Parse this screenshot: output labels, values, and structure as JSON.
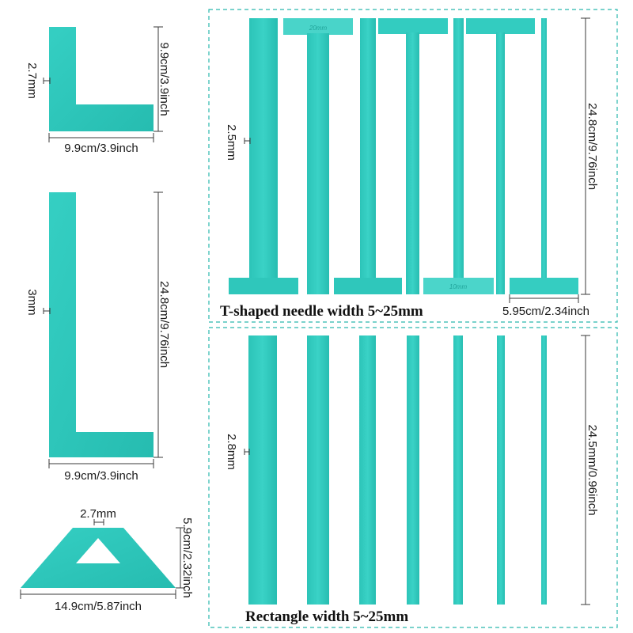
{
  "colors": {
    "acrylic": "#30cbbf",
    "acrylic_light": "#5fdcd2",
    "acrylic_dark": "#22b3a8",
    "box_border": "#2bb8ad"
  },
  "small_l": {
    "height_label": "9.9cm/3.9inch",
    "width_label": "9.9cm/3.9inch",
    "thickness_label": "2.7mm"
  },
  "large_l": {
    "height_label": "24.8cm/9.76inch",
    "width_label": "9.9cm/3.9inch",
    "thickness_label": "3mm"
  },
  "triangle": {
    "top_label": "2.7mm",
    "height_label": "5.9cm/2.32inch",
    "width_label": "14.9cm/5.87inch"
  },
  "t_shaped": {
    "caption": "T-shaped needle width 5~25mm",
    "thickness_label": "2.5mm",
    "height_label": "24.8cm/9.76inch",
    "head_width_label": "5.95cm/2.34inch",
    "engravings": [
      "20mm",
      "10mm"
    ]
  },
  "rectangles": {
    "caption": "Rectangle width 5~25mm",
    "thickness_label": "2.8mm",
    "height_label": "24.5mm/0.96inch"
  }
}
